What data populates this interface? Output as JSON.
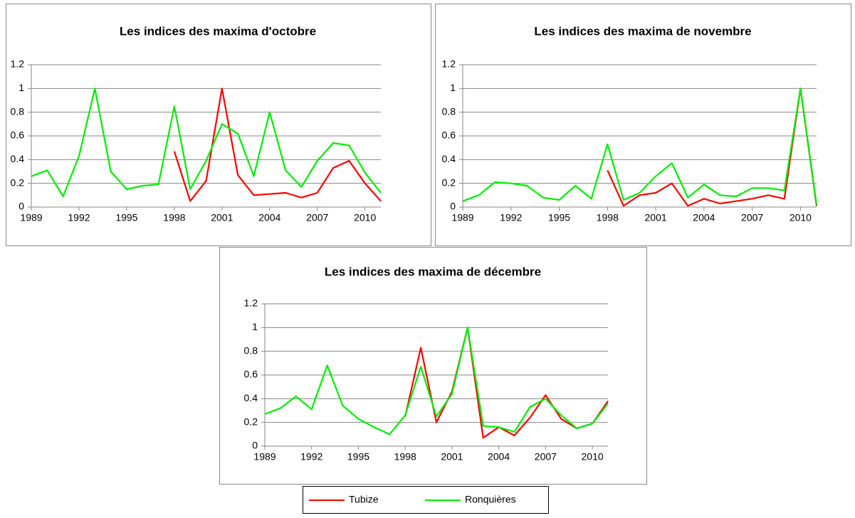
{
  "chart_data": [
    {
      "type": "line",
      "title": "Les indices des maxima d'octobre",
      "x": [
        1989,
        1990,
        1991,
        1992,
        1993,
        1994,
        1995,
        1996,
        1997,
        1998,
        1999,
        2000,
        2001,
        2002,
        2003,
        2004,
        2005,
        2006,
        2007,
        2008,
        2009,
        2010,
        2011
      ],
      "series": [
        {
          "name": "Tubize",
          "color": "#ff0000",
          "values": [
            null,
            null,
            null,
            null,
            null,
            null,
            null,
            null,
            null,
            0.47,
            0.05,
            0.22,
            1.0,
            0.27,
            0.1,
            0.11,
            0.12,
            0.08,
            0.12,
            0.33,
            0.39,
            0.2,
            0.05
          ]
        },
        {
          "name": "Ronquières",
          "color": "#00ee00",
          "values": [
            0.26,
            0.31,
            0.09,
            0.43,
            1.0,
            0.3,
            0.15,
            0.18,
            0.19,
            0.85,
            0.15,
            0.39,
            0.7,
            0.62,
            0.26,
            0.8,
            0.31,
            0.17,
            0.39,
            0.54,
            0.52,
            0.29,
            0.12
          ]
        }
      ],
      "xlim": [
        1989,
        2011
      ],
      "xticks": [
        1989,
        1992,
        1995,
        1998,
        2001,
        2004,
        2007,
        2010
      ],
      "ylim": [
        0,
        1.2
      ],
      "yticks": [
        0,
        0.2,
        0.4,
        0.6,
        0.8,
        1,
        1.2
      ],
      "grid": true
    },
    {
      "type": "line",
      "title": "Les indices des maxima de novembre",
      "x": [
        1989,
        1990,
        1991,
        1992,
        1993,
        1994,
        1995,
        1996,
        1997,
        1998,
        1999,
        2000,
        2001,
        2002,
        2003,
        2004,
        2005,
        2006,
        2007,
        2008,
        2009,
        2010,
        2011
      ],
      "series": [
        {
          "color": "#ff0000",
          "values": [
            null,
            null,
            null,
            null,
            null,
            null,
            null,
            null,
            null,
            0.31,
            0.01,
            0.1,
            0.12,
            0.2,
            0.01,
            0.07,
            0.03,
            0.05,
            0.07,
            0.1,
            0.07,
            1.0,
            0.01
          ]
        },
        {
          "color": "#00ee00",
          "values": [
            0.05,
            0.1,
            0.21,
            0.2,
            0.18,
            0.08,
            0.06,
            0.18,
            0.07,
            0.53,
            0.06,
            0.12,
            0.26,
            0.37,
            0.08,
            0.19,
            0.1,
            0.09,
            0.16,
            0.16,
            0.14,
            1.0,
            0.02
          ]
        }
      ],
      "xlim": [
        1989,
        2011
      ],
      "xticks": [
        1989,
        1992,
        1995,
        1998,
        2001,
        2004,
        2007,
        2010
      ],
      "ylim": [
        0,
        1.2
      ],
      "yticks": [
        0,
        0.2,
        0.4,
        0.6,
        0.8,
        1,
        1.2
      ],
      "grid": true
    },
    {
      "type": "line",
      "title": "Les indices des maxima de décembre",
      "x": [
        1989,
        1990,
        1991,
        1992,
        1993,
        1994,
        1995,
        1996,
        1997,
        1998,
        1999,
        2000,
        2001,
        2002,
        2003,
        2004,
        2005,
        2006,
        2007,
        2008,
        2009,
        2010,
        2011
      ],
      "series": [
        {
          "color": "#ff0000",
          "values": [
            null,
            null,
            null,
            null,
            null,
            null,
            null,
            null,
            null,
            0.25,
            0.83,
            0.2,
            0.46,
            1.0,
            0.07,
            0.16,
            0.09,
            0.24,
            0.43,
            0.23,
            0.15,
            0.19,
            0.38
          ]
        },
        {
          "color": "#00ee00",
          "values": [
            0.27,
            0.32,
            0.42,
            0.31,
            0.68,
            0.34,
            0.23,
            0.16,
            0.1,
            0.26,
            0.67,
            0.25,
            0.44,
            1.0,
            0.17,
            0.16,
            0.12,
            0.33,
            0.4,
            0.26,
            0.15,
            0.19,
            0.36
          ]
        }
      ],
      "xlim": [
        1989,
        2011
      ],
      "xticks": [
        1989,
        1992,
        1995,
        1998,
        2001,
        2004,
        2007,
        2010
      ],
      "ylim": [
        0,
        1.2
      ],
      "yticks": [
        0,
        0.2,
        0.4,
        0.6,
        0.8,
        1,
        1.2
      ],
      "grid": true
    }
  ]
}
